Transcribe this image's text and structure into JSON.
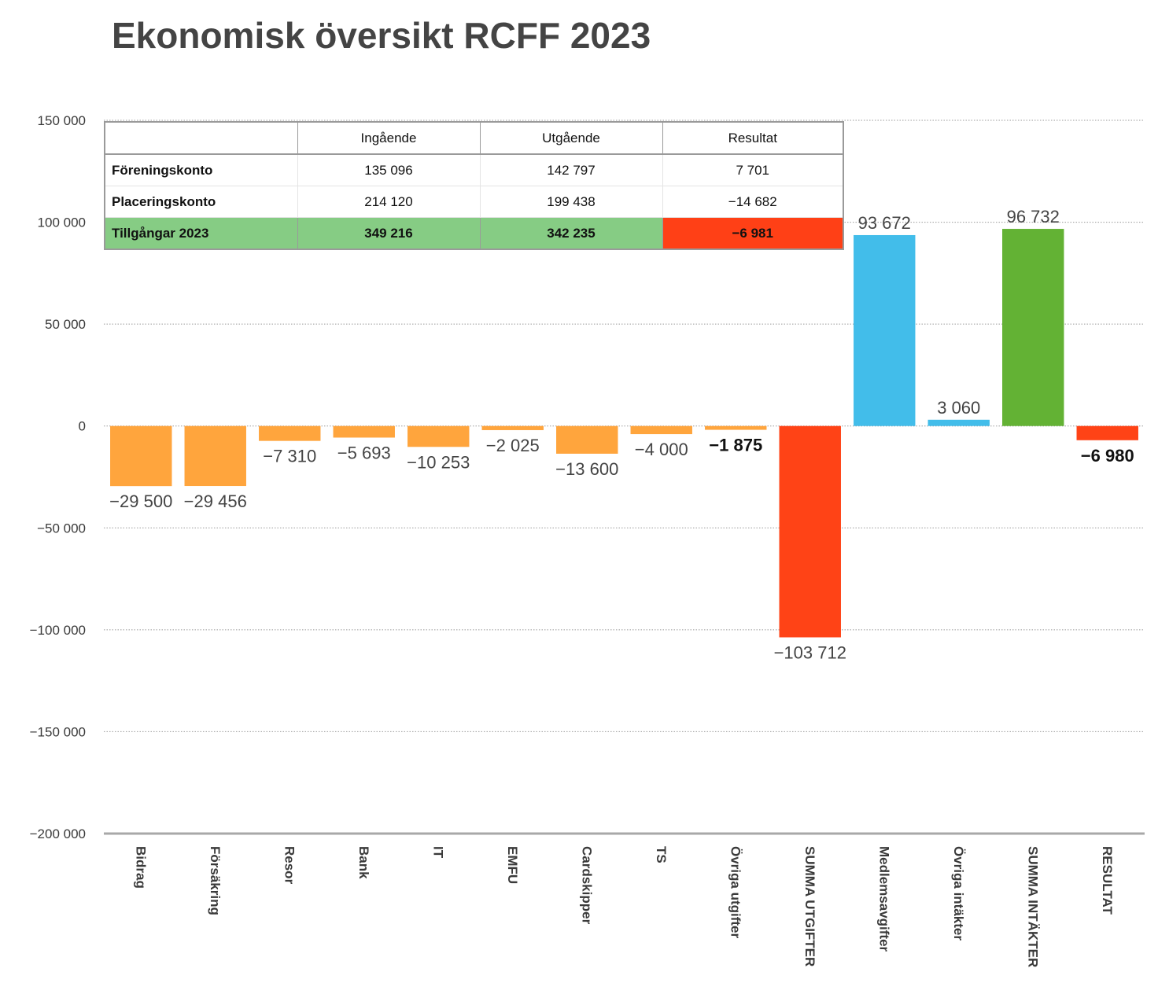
{
  "title": "Ekonomisk översikt RCFF 2023",
  "chart_data": {
    "type": "bar",
    "title": "Ekonomisk översikt RCFF 2023",
    "categories": [
      "Bidrag",
      "Försäkring",
      "Resor",
      "Bank",
      "IT",
      "EMFU",
      "Cardskipper",
      "TS",
      "Övriga utgifter",
      "SUMMA UTGIFTER",
      "Medlemsavgifter",
      "Övriga intäkter",
      "SUMMA INTÄKTER",
      "RESULTAT"
    ],
    "values": [
      -29500,
      -29456,
      -7310,
      -5693,
      -10253,
      -2025,
      -13600,
      -4000,
      -1875,
      -103712,
      93672,
      3060,
      96732,
      -6980
    ],
    "value_labels": [
      "−29 500",
      "−29 456",
      "−7 310",
      "−5 693",
      "−10 253",
      "−2 025",
      "−13 600",
      "−4 000",
      "−1 875",
      "−103 712",
      "93 672",
      "3 060",
      "96 732",
      "−6 980"
    ],
    "colors": [
      "#ffa53d",
      "#ffa53d",
      "#ffa53d",
      "#ffa53d",
      "#ffa53d",
      "#ffa53d",
      "#ffa53d",
      "#ffa53d",
      "#ffa53d",
      "#ff4316",
      "#42bdea",
      "#42bdea",
      "#63b234",
      "#ff4316"
    ],
    "bold_labels": [
      false,
      false,
      false,
      false,
      false,
      false,
      false,
      false,
      true,
      false,
      false,
      false,
      false,
      true
    ],
    "ylim": [
      -200000,
      150000
    ],
    "yticks": [
      150000,
      100000,
      50000,
      0,
      -50000,
      -100000,
      -150000,
      -200000
    ],
    "ytick_labels": [
      "150 000",
      "100 000",
      "50 000",
      "0",
      "−50 000",
      "−100 000",
      "−150 000",
      "−200 000"
    ],
    "grid": true,
    "xlabel": "",
    "ylabel": ""
  },
  "table": {
    "headers": [
      "",
      "Ingående",
      "Utgående",
      "Resultat"
    ],
    "rows": [
      [
        "Föreningskonto",
        "135 096",
        "142 797",
        "7 701"
      ],
      [
        "Placeringskonto",
        "214 120",
        "199 438",
        "−14 682"
      ]
    ],
    "total": [
      "Tillgångar 2023",
      "349 216",
      "342 235",
      "−6 981"
    ],
    "colors": {
      "total_row": "#86cc84",
      "total_negative": "#ff4016"
    }
  }
}
